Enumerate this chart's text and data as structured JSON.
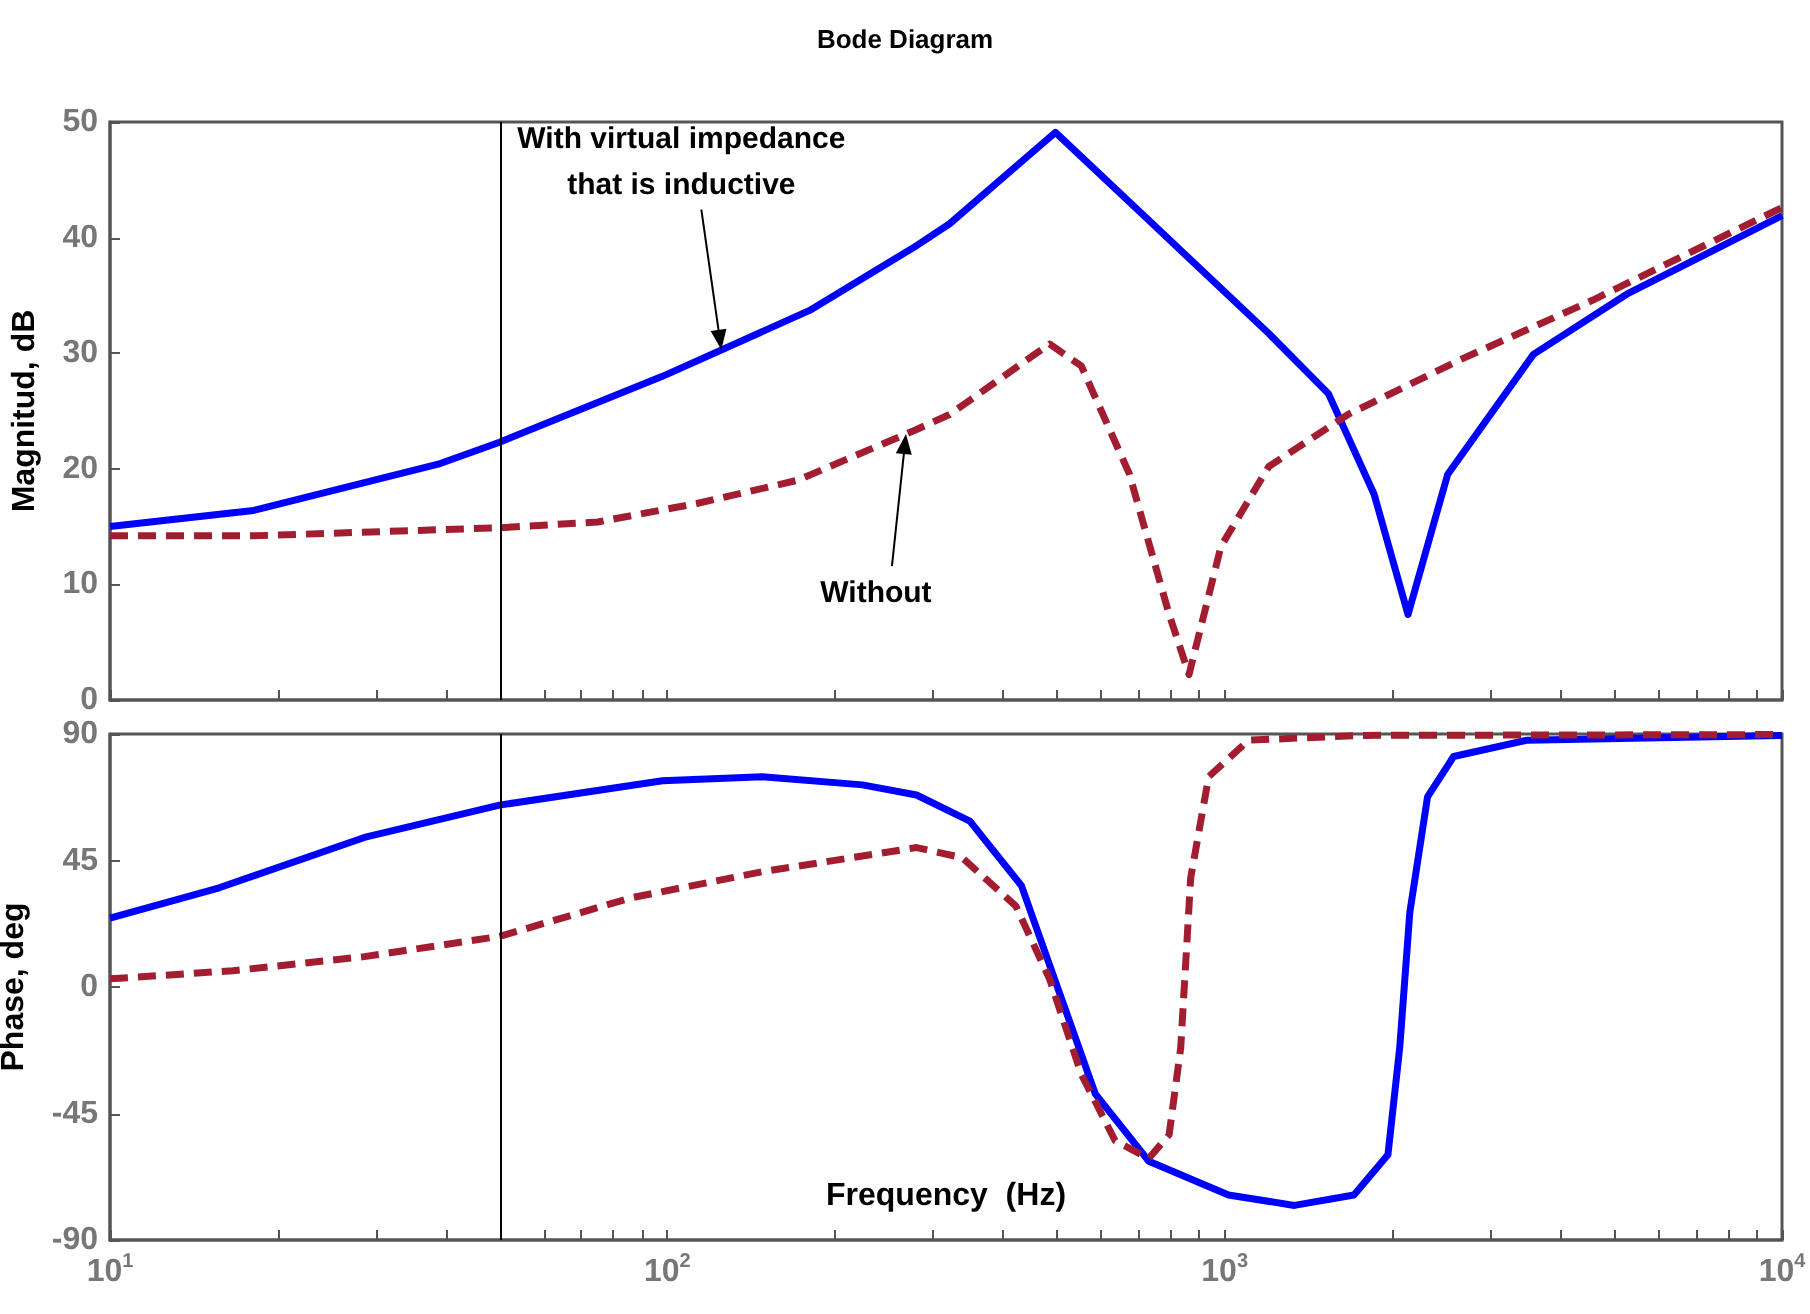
{
  "chart_data": [
    {
      "type": "line",
      "title": "Bode Diagram",
      "ylabel": "Magnitud, dB",
      "tick_labels": "y",
      "marker": "none",
      "xlim": [
        10,
        10000
      ],
      "xticks": [
        {
          "value": 10,
          "label": null
        },
        {
          "value": 20,
          "label": null
        },
        {
          "value": 30,
          "label": null
        },
        {
          "value": 40,
          "label": null
        },
        {
          "value": 50,
          "label": null
        },
        {
          "value": 60,
          "label": null
        },
        {
          "value": 70,
          "label": null
        },
        {
          "value": 80,
          "label": null
        },
        {
          "value": 90,
          "label": null
        },
        {
          "value": 100,
          "label": null
        },
        {
          "value": 200,
          "label": null
        },
        {
          "value": 300,
          "label": null
        },
        {
          "value": 400,
          "label": null
        },
        {
          "value": 500,
          "label": null
        },
        {
          "value": 600,
          "label": null
        },
        {
          "value": 700,
          "label": null
        },
        {
          "value": 800,
          "label": null
        },
        {
          "value": 900,
          "label": null
        },
        {
          "value": 1000,
          "label": null
        },
        {
          "value": 2000,
          "label": null
        },
        {
          "value": 3000,
          "label": null
        },
        {
          "value": 4000,
          "label": null
        },
        {
          "value": 5000,
          "label": null
        },
        {
          "value": 6000,
          "label": null
        },
        {
          "value": 7000,
          "label": null
        },
        {
          "value": 8000,
          "label": null
        },
        {
          "value": 9000,
          "label": null
        },
        {
          "value": 10000,
          "label": null
        }
      ],
      "ylim": [
        0,
        50
      ],
      "yticks": [
        0,
        10,
        20,
        30,
        40,
        50
      ],
      "log": "x",
      "ref_lines": [
        {
          "axis": "x",
          "value": 50,
          "color": "#000000"
        }
      ],
      "annotations": [
        {
          "text": "With virtual impedance\nthat is inductive",
          "x": 125,
          "y": 30.3
        },
        {
          "text": "Without",
          "x": 268,
          "y": 23.0
        }
      ],
      "series": [
        {
          "color": "#0000ff",
          "line_style": "solid",
          "x": [
            10,
            18.1,
            38.8,
            50,
            98,
            180,
            280,
            321,
            497,
            731,
            1200,
            1535,
            1854,
            2133,
            2512,
            3581,
            5265,
            10000
          ],
          "values": [
            15.0,
            16.4,
            20.4,
            22.3,
            28.0,
            33.7,
            39.3,
            41.2,
            49.1,
            41.5,
            31.7,
            26.5,
            17.8,
            7.4,
            19.5,
            29.9,
            35.1,
            41.9
          ]
        },
        {
          "color": "#a31d30",
          "line_style": "dashed",
          "x": [
            10,
            18.1,
            50,
            75,
            113,
            171,
            280,
            321,
            485,
            553,
            674,
            795,
            863,
            985,
            1200,
            1665,
            2637,
            4580,
            10000
          ],
          "values": [
            14.2,
            14.2,
            14.9,
            15.4,
            17.0,
            19.0,
            23.4,
            24.7,
            30.8,
            28.9,
            19.6,
            7.4,
            2.2,
            13.3,
            20.2,
            24.7,
            29.4,
            34.6,
            42.6
          ]
        }
      ]
    },
    {
      "type": "line",
      "xlabel": "Frequency  (Hz)",
      "ylabel": "Phase, deg",
      "marker": "none",
      "xlim": [
        10,
        10000
      ],
      "xticks": [
        {
          "value": 10,
          "label": "10$^{1}$"
        },
        {
          "value": 20,
          "label": null
        },
        {
          "value": 30,
          "label": null
        },
        {
          "value": 40,
          "label": null
        },
        {
          "value": 50,
          "label": null
        },
        {
          "value": 60,
          "label": null
        },
        {
          "value": 70,
          "label": null
        },
        {
          "value": 80,
          "label": null
        },
        {
          "value": 90,
          "label": null
        },
        {
          "value": 100,
          "label": "10$^{2}$"
        },
        {
          "value": 200,
          "label": null
        },
        {
          "value": 300,
          "label": null
        },
        {
          "value": 400,
          "label": null
        },
        {
          "value": 500,
          "label": null
        },
        {
          "value": 600,
          "label": null
        },
        {
          "value": 700,
          "label": null
        },
        {
          "value": 800,
          "label": null
        },
        {
          "value": 900,
          "label": null
        },
        {
          "value": 1000,
          "label": "10$^{3}$"
        },
        {
          "value": 2000,
          "label": null
        },
        {
          "value": 3000,
          "label": null
        },
        {
          "value": 4000,
          "label": null
        },
        {
          "value": 5000,
          "label": null
        },
        {
          "value": 6000,
          "label": null
        },
        {
          "value": 7000,
          "label": null
        },
        {
          "value": 8000,
          "label": null
        },
        {
          "value": 9000,
          "label": null
        },
        {
          "value": 10000,
          "label": "10$^{4}$"
        }
      ],
      "ylim": [
        -90,
        90
      ],
      "yticks": [
        -90,
        -45,
        0,
        45,
        90
      ],
      "log": "x",
      "ref_lines": [
        {
          "axis": "x",
          "value": 50,
          "color": "#000000"
        }
      ],
      "series": [
        {
          "color": "#0000ff",
          "line_style": "solid",
          "x": [
            10,
            15.7,
            28.6,
            50,
            98,
            148,
            224,
            280,
            349,
            432,
            510,
            586,
            731,
            1016,
            1334,
            1706,
            1963,
            2061,
            2149,
            2312,
            2575,
            3490,
            10000
          ],
          "values": [
            24.5,
            35.3,
            53.2,
            64.7,
            73.4,
            74.8,
            71.9,
            68.3,
            59.0,
            36,
            -4.3,
            -38,
            -62,
            -74,
            -77.7,
            -74,
            -59.7,
            -21.6,
            26.6,
            67.6,
            82,
            87.8,
            89.5
          ]
        },
        {
          "color": "#a31d30",
          "line_style": "dashed",
          "x": [
            10,
            16.6,
            28.6,
            50,
            86,
            148,
            280,
            338,
            422,
            485,
            553,
            636,
            731,
            795,
            834,
            869,
            936,
            1104,
            1750,
            10000
          ],
          "values": [
            2.9,
            5.8,
            10.8,
            18,
            31.7,
            41,
            49.6,
            46,
            28.8,
            2.9,
            -31,
            -54.7,
            -61,
            -52.5,
            -21.6,
            38.8,
            74.8,
            87.8,
            89.5,
            89.8
          ]
        }
      ]
    }
  ]
}
